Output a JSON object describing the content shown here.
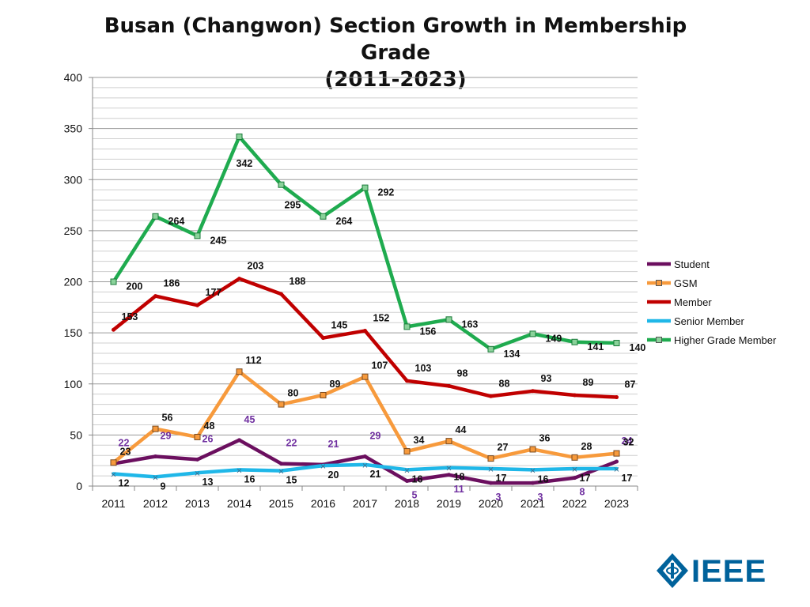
{
  "chart_data": {
    "type": "line",
    "title_line1": "Busan (Changwon) Section Growth in Membership Grade",
    "title_line2": "(2011-2023)",
    "categories": [
      "2011",
      "2012",
      "2013",
      "2014",
      "2015",
      "2016",
      "2017",
      "2018",
      "2019",
      "2020",
      "2021",
      "2022",
      "2023"
    ],
    "ylim": [
      0,
      400
    ],
    "yticks": [
      0,
      50,
      100,
      150,
      200,
      250,
      300,
      350,
      400
    ],
    "grid": true,
    "legend_position": "right",
    "series": [
      {
        "name": "Student",
        "color": "#6b0f5f",
        "label_color": "#7030a0",
        "values": [
          22,
          29,
          26,
          45,
          22,
          21,
          29,
          5,
          11,
          3,
          3,
          8,
          24
        ]
      },
      {
        "name": "GSM",
        "color": "#f79a3c",
        "label_color": "#111111",
        "values": [
          23,
          56,
          48,
          112,
          80,
          89,
          107,
          34,
          44,
          27,
          36,
          28,
          32
        ]
      },
      {
        "name": "Member",
        "color": "#c00000",
        "label_color": "#111111",
        "values": [
          153,
          186,
          177,
          203,
          188,
          145,
          152,
          103,
          98,
          88,
          93,
          89,
          87
        ]
      },
      {
        "name": "Senior Member",
        "color": "#1fb7e8",
        "label_color": "#111111",
        "values": [
          12,
          9,
          13,
          16,
          15,
          20,
          21,
          16,
          18,
          17,
          16,
          17,
          17
        ]
      },
      {
        "name": "Higher Grade Member",
        "color": "#1fab4f",
        "label_color": "#111111",
        "values": [
          200,
          264,
          245,
          342,
          295,
          264,
          292,
          156,
          163,
          134,
          149,
          141,
          140
        ]
      }
    ]
  },
  "logo": {
    "text": "IEEE",
    "icon": "ieee-kite-icon",
    "color": "#00629b"
  }
}
